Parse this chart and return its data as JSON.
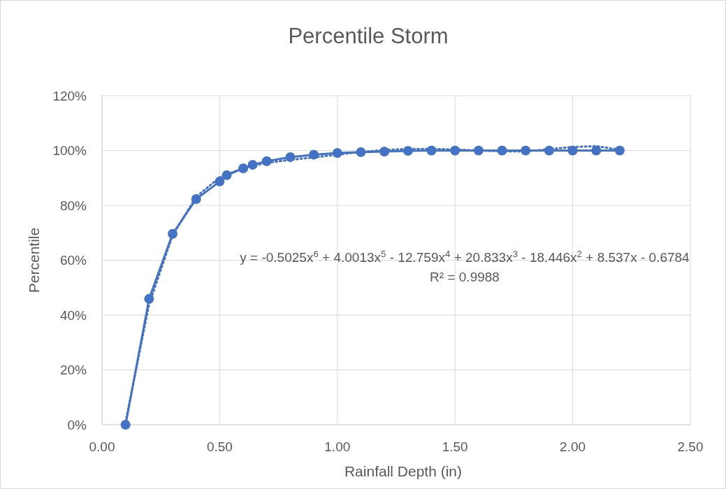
{
  "chart_data": {
    "type": "line",
    "title": "Percentile Storm",
    "xlabel": "Rainfall Depth (in)",
    "ylabel": "Percentile",
    "series": [
      {
        "type": "line",
        "color": "#4472c4",
        "marker": "circle",
        "line_style": "solid",
        "x": [
          0.1,
          0.2,
          0.3,
          0.4,
          0.5,
          0.53,
          0.6,
          0.64,
          0.7,
          0.8,
          0.9,
          1.0,
          1.1,
          1.2,
          1.3,
          1.4,
          1.5,
          1.6,
          1.7,
          1.8,
          1.9,
          2.0,
          2.1,
          2.2
        ],
        "values": [
          0,
          45.9,
          69.6,
          82.3,
          88.7,
          91,
          93.5,
          94.8,
          96.1,
          97.6,
          98.5,
          99.1,
          99.4,
          99.6,
          99.9,
          100,
          100,
          100,
          100,
          100,
          100,
          100,
          100,
          100
        ]
      },
      {
        "type": "line",
        "color": "#4472c4",
        "marker": "none",
        "line_style": "dotted",
        "x": [
          0.1,
          0.2,
          0.3,
          0.4,
          0.5,
          0.6,
          0.7,
          0.8,
          0.9,
          1.0,
          1.1,
          1.2,
          1.3,
          1.4,
          1.5,
          1.6,
          1.7,
          1.8,
          1.9,
          2.0,
          2.1,
          2.2
        ],
        "values": [
          1.0,
          43.9,
          69.1,
          83.1,
          90.2,
          93.7,
          95.5,
          96.6,
          97.5,
          98.5,
          99.5,
          100.2,
          100.6,
          100.6,
          100.4,
          100.0,
          99.7,
          99.7,
          100.5,
          101.3,
          101.6,
          100.3
        ]
      }
    ],
    "xlim": [
      0,
      2.5
    ],
    "xticks": [
      {
        "value": 0,
        "label": "0.00"
      },
      {
        "value": 0.5,
        "label": "0.50"
      },
      {
        "value": 1,
        "label": "1.00"
      },
      {
        "value": 1.5,
        "label": "1.50"
      },
      {
        "value": 2,
        "label": "2.00"
      },
      {
        "value": 2.5,
        "label": "2.50"
      }
    ],
    "ylim": [
      0,
      120
    ],
    "yticks": [
      {
        "value": 0,
        "label": "0%"
      },
      {
        "value": 20,
        "label": "20%"
      },
      {
        "value": 40,
        "label": "40%"
      },
      {
        "value": 60,
        "label": "60%"
      },
      {
        "value": 80,
        "label": "80%"
      },
      {
        "value": 100,
        "label": "100%"
      },
      {
        "value": 120,
        "label": "120%"
      }
    ],
    "grid": true,
    "annotations": [
      "y = -0.5025x$^{6}$ + 4.0013x$^{5}$ - 12.759x$^{4}$ + 20.833x$^{3}$ - 18.446x$^{2}$ + 8.537x - 0.6784",
      "R² = 0.9988"
    ]
  }
}
